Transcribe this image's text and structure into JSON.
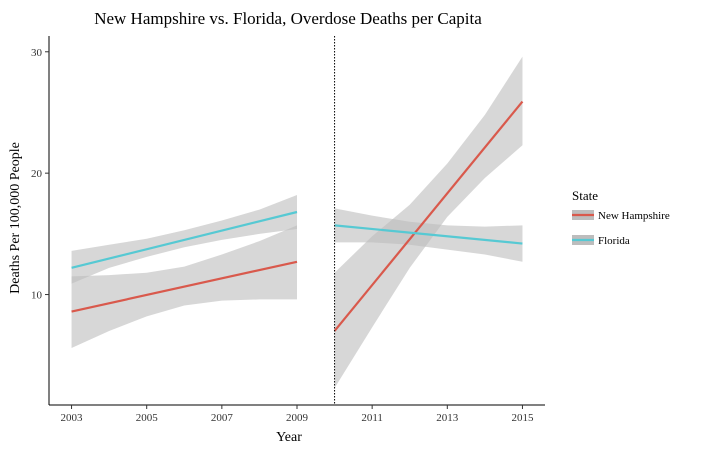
{
  "chart_data": {
    "type": "line",
    "title": "New Hampshire vs. Florida, Overdose Deaths per Capita",
    "xlabel": "Year",
    "ylabel": "Deaths Per 100,000 People",
    "xlim": [
      2002.4,
      2015.6
    ],
    "ylim": [
      0.9,
      31.3
    ],
    "x_ticks": [
      2003,
      2005,
      2007,
      2009,
      2011,
      2013,
      2015
    ],
    "y_ticks": [
      10,
      20,
      30
    ],
    "grid": false,
    "vline": {
      "x": 2010,
      "style": "dotted"
    },
    "legend": {
      "title": "State",
      "placement": "right"
    },
    "series": [
      {
        "name": "New Hampshire",
        "color": "#d9594c",
        "segments": [
          {
            "x": [
              2003,
              2009
            ],
            "y": [
              8.6,
              12.7
            ],
            "band_x": [
              2003,
              2004,
              2005,
              2006,
              2007,
              2008,
              2009
            ],
            "band_lower": [
              5.6,
              7.0,
              8.2,
              9.1,
              9.5,
              9.6,
              9.6
            ],
            "band_upper": [
              11.5,
              11.6,
              11.8,
              12.3,
              13.3,
              14.4,
              15.7
            ]
          },
          {
            "x": [
              2010,
              2015
            ],
            "y": [
              7.0,
              25.9
            ],
            "band_x": [
              2010,
              2011,
              2012,
              2013,
              2014,
              2015
            ],
            "band_lower": [
              2.3,
              7.3,
              12.2,
              16.4,
              19.6,
              22.3
            ],
            "band_upper": [
              11.8,
              14.8,
              17.4,
              20.8,
              24.8,
              29.6
            ]
          }
        ]
      },
      {
        "name": "Florida",
        "color": "#56c9d3",
        "segments": [
          {
            "x": [
              2003,
              2009
            ],
            "y": [
              12.2,
              16.8
            ],
            "band_x": [
              2003,
              2004,
              2005,
              2006,
              2007,
              2008,
              2009
            ],
            "band_lower": [
              10.9,
              12.2,
              13.1,
              13.9,
              14.5,
              15.0,
              15.4
            ],
            "band_upper": [
              13.6,
              14.1,
              14.6,
              15.3,
              16.1,
              17.0,
              18.2
            ]
          },
          {
            "x": [
              2010,
              2015
            ],
            "y": [
              15.7,
              14.2
            ],
            "band_x": [
              2010,
              2011,
              2012,
              2013,
              2014,
              2015
            ],
            "band_lower": [
              14.3,
              14.3,
              14.1,
              13.7,
              13.3,
              12.7
            ],
            "band_upper": [
              17.1,
              16.5,
              16.0,
              15.7,
              15.6,
              15.7
            ]
          }
        ]
      }
    ],
    "band_color": "#bdbdbd"
  }
}
